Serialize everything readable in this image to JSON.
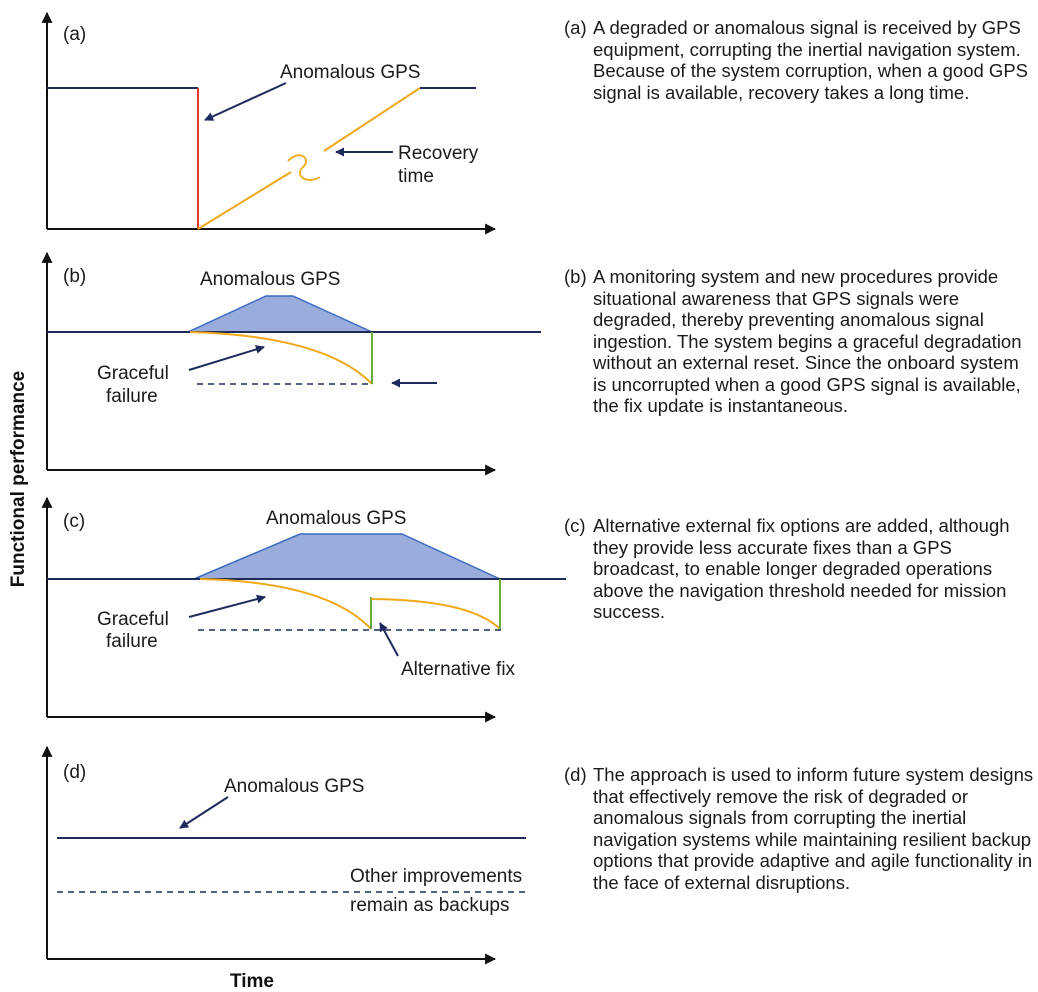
{
  "axes": {
    "y_title": "Functional performance",
    "x_title": "Time"
  },
  "panels": {
    "a": {
      "letter": "(a)",
      "anomalous": "Anomalous GPS",
      "recovery_line1": "Recovery",
      "recovery_line2": "time",
      "key": "(a)",
      "description": "A degraded or anomalous signal is received by GPS equipment, corrupting the inertial navigation system. Because of the system corruption, when a good GPS signal is available, recovery takes a long time."
    },
    "b": {
      "letter": "(b)",
      "anomalous": "Anomalous GPS",
      "graceful_line1": "Graceful",
      "graceful_line2": "failure",
      "key": "(b)",
      "description": "A monitoring system and new procedures provide situational awareness that GPS signals were degraded, thereby preventing anomalous signal ingestion. The system begins a graceful degradation without an external reset. Since the onboard system is uncorrupted when a good GPS signal is available, the fix update is instantaneous."
    },
    "c": {
      "letter": "(c)",
      "anomalous": "Anomalous GPS",
      "graceful_line1": "Graceful",
      "graceful_line2": "failure",
      "alternative": "Alternative fix",
      "key": "(c)",
      "description": "Alternative external fix options are added, although they provide less accurate fixes than a GPS broadcast, to enable longer degraded operations above the navigation threshold needed for mission success."
    },
    "d": {
      "letter": "(d)",
      "anomalous": "Anomalous GPS",
      "other_line1": "Other improvements",
      "other_line2": "remain as backups",
      "key": "(d)",
      "description": "The approach is used to inform future system designs that effectively remove the risk of degraded or anomalous signals from corrupting the inertial navigation systems while maintaining resilient backup options that provide adaptive and agile functionality in the face of external disruptions."
    }
  },
  "colors": {
    "navy": "#1f2a5c",
    "red": "#e03c2c",
    "orange": "#f0a818",
    "green": "#6aab3c",
    "fill_blue": "#99acdb"
  }
}
